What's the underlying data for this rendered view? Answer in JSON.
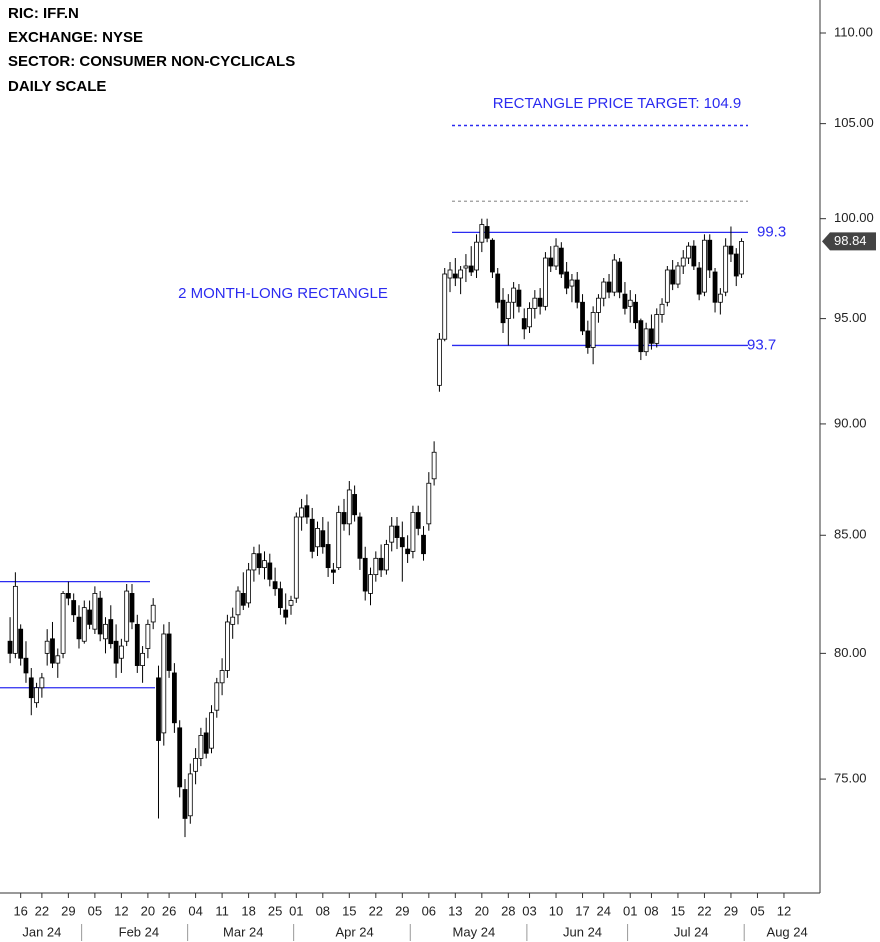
{
  "chart_data": {
    "type": "candlestick",
    "header": [
      "RIC:  IFF.N",
      "EXCHANGE: NYSE",
      "SECTOR:  CONSUMER NON-CYCLICALS",
      "DAILY SCALE"
    ],
    "target_label": "RECTANGLE PRICE TARGET: 104.9",
    "pattern_label": "2 MONTH-LONG RECTANGLE",
    "log_scale": true,
    "ylim": [
      70.74,
      111.88
    ],
    "yticks": [
      {
        "value": 75,
        "label": "75.00"
      },
      {
        "value": 80,
        "label": "80.00"
      },
      {
        "value": 85,
        "label": "85.00"
      },
      {
        "value": 90,
        "label": "90.00"
      },
      {
        "value": 95,
        "label": "95.00"
      },
      {
        "value": 100,
        "label": "100.00"
      },
      {
        "value": 105,
        "label": "105.00"
      },
      {
        "value": 110,
        "label": "110.00"
      }
    ],
    "xlim": [
      -1.9,
      152.8
    ],
    "xticks": [
      {
        "value": 2,
        "label": "16"
      },
      {
        "value": 6,
        "label": "22"
      },
      {
        "value": 11,
        "label": "29"
      },
      {
        "value": 16,
        "label": "05"
      },
      {
        "value": 21,
        "label": "12"
      },
      {
        "value": 26,
        "label": "20"
      },
      {
        "value": 30,
        "label": "26"
      },
      {
        "value": 35,
        "label": "04"
      },
      {
        "value": 40,
        "label": "11"
      },
      {
        "value": 45,
        "label": "18"
      },
      {
        "value": 50,
        "label": "25"
      },
      {
        "value": 54,
        "label": "01"
      },
      {
        "value": 59,
        "label": "08"
      },
      {
        "value": 64,
        "label": "15"
      },
      {
        "value": 69,
        "label": "22"
      },
      {
        "value": 74,
        "label": "29"
      },
      {
        "value": 79,
        "label": "06"
      },
      {
        "value": 84,
        "label": "13"
      },
      {
        "value": 89,
        "label": "20"
      },
      {
        "value": 94,
        "label": "28"
      },
      {
        "value": 98,
        "label": "03"
      },
      {
        "value": 103,
        "label": "10"
      },
      {
        "value": 108,
        "label": "17"
      },
      {
        "value": 112,
        "label": "24"
      },
      {
        "value": 117,
        "label": "01"
      },
      {
        "value": 121,
        "label": "08"
      },
      {
        "value": 126,
        "label": "15"
      },
      {
        "value": 131,
        "label": "22"
      },
      {
        "value": 136,
        "label": "29"
      },
      {
        "value": 141,
        "label": "05"
      },
      {
        "value": 146,
        "label": "12"
      }
    ],
    "month_labels": [
      {
        "value": 6,
        "label": "Jan 24"
      },
      {
        "value": 24.3,
        "label": "Feb 24"
      },
      {
        "value": 44,
        "label": "Mar 24"
      },
      {
        "value": 65,
        "label": "Apr 24"
      },
      {
        "value": 87.5,
        "label": "May 24"
      },
      {
        "value": 108,
        "label": "Jun 24"
      },
      {
        "value": 128.5,
        "label": "Jul 24"
      },
      {
        "value": 146.6,
        "label": "Aug 24"
      }
    ],
    "up_color": "#ffffff",
    "down_color": "#000000",
    "annotation_color": "#2b2bf0",
    "levels": [
      83.0,
      78.6,
      99.3,
      93.7
    ],
    "target": 104.9,
    "upper_dotted": 100.9,
    "last_price": 98.84,
    "ohlc": [
      [
        80.5,
        81.5,
        79.6,
        80.0
      ],
      [
        80.0,
        83.4,
        79.8,
        82.8
      ],
      [
        81.0,
        81.2,
        79.5,
        79.8
      ],
      [
        79.8,
        80.5,
        78.8,
        79.2
      ],
      [
        79.0,
        79.4,
        77.5,
        78.2
      ],
      [
        78.0,
        78.8,
        77.8,
        78.6
      ],
      [
        78.6,
        79.2,
        78.2,
        79.0
      ],
      [
        80.0,
        81.0,
        79.5,
        80.5
      ],
      [
        80.6,
        81.3,
        79.4,
        79.6
      ],
      [
        79.6,
        80.2,
        79.0,
        79.9
      ],
      [
        80.0,
        82.6,
        79.8,
        82.5
      ],
      [
        82.5,
        83.0,
        82.0,
        82.3
      ],
      [
        82.2,
        82.5,
        81.3,
        81.6
      ],
      [
        81.5,
        82.0,
        80.2,
        80.6
      ],
      [
        80.5,
        82.2,
        80.4,
        81.9
      ],
      [
        81.8,
        82.2,
        81.0,
        81.2
      ],
      [
        81.0,
        82.8,
        80.8,
        82.5
      ],
      [
        82.3,
        82.6,
        80.5,
        80.8
      ],
      [
        80.6,
        81.5,
        80.0,
        81.2
      ],
      [
        81.4,
        82.0,
        80.2,
        80.4
      ],
      [
        80.5,
        81.2,
        79.0,
        79.6
      ],
      [
        79.8,
        80.6,
        79.2,
        80.3
      ],
      [
        80.5,
        82.9,
        80.3,
        82.6
      ],
      [
        82.5,
        82.9,
        81.0,
        81.3
      ],
      [
        81.2,
        81.6,
        79.2,
        79.5
      ],
      [
        79.5,
        80.3,
        78.8,
        80.0
      ],
      [
        80.2,
        81.4,
        79.8,
        81.2
      ],
      [
        81.3,
        82.3,
        81.0,
        82.0
      ],
      [
        79.0,
        79.5,
        73.5,
        76.5
      ],
      [
        76.8,
        81.2,
        76.3,
        80.8
      ],
      [
        80.8,
        81.3,
        79.0,
        79.3
      ],
      [
        79.2,
        79.6,
        76.8,
        77.2
      ],
      [
        77.0,
        77.3,
        74.3,
        74.7
      ],
      [
        74.6,
        75.0,
        72.8,
        73.5
      ],
      [
        73.6,
        75.6,
        73.3,
        75.2
      ],
      [
        75.3,
        76.2,
        74.8,
        75.8
      ],
      [
        75.8,
        77.0,
        75.5,
        76.7
      ],
      [
        76.8,
        77.4,
        75.8,
        76.0
      ],
      [
        76.2,
        77.9,
        76.0,
        77.6
      ],
      [
        77.7,
        79.0,
        77.4,
        78.8
      ],
      [
        78.8,
        79.8,
        78.3,
        79.3
      ],
      [
        79.3,
        81.6,
        79.0,
        81.3
      ],
      [
        81.2,
        81.9,
        80.6,
        81.5
      ],
      [
        81.6,
        82.8,
        81.2,
        82.6
      ],
      [
        82.5,
        83.4,
        81.8,
        82.0
      ],
      [
        82.1,
        83.8,
        81.9,
        83.5
      ],
      [
        83.5,
        84.5,
        83.0,
        84.2
      ],
      [
        84.2,
        84.6,
        83.3,
        83.6
      ],
      [
        83.6,
        84.3,
        83.1,
        83.9
      ],
      [
        83.8,
        84.2,
        82.8,
        83.1
      ],
      [
        83.0,
        83.6,
        82.4,
        82.7
      ],
      [
        82.7,
        83.0,
        81.6,
        81.9
      ],
      [
        81.8,
        82.5,
        81.2,
        81.5
      ],
      [
        82.0,
        82.4,
        81.6,
        82.2
      ],
      [
        82.3,
        86.0,
        82.1,
        85.8
      ],
      [
        85.8,
        86.6,
        85.2,
        86.2
      ],
      [
        86.3,
        86.8,
        85.5,
        85.8
      ],
      [
        85.7,
        86.2,
        84.0,
        84.3
      ],
      [
        84.5,
        85.6,
        84.1,
        85.3
      ],
      [
        85.2,
        85.8,
        84.2,
        84.5
      ],
      [
        84.6,
        85.6,
        83.2,
        83.6
      ],
      [
        83.5,
        83.8,
        82.9,
        83.4
      ],
      [
        83.6,
        86.3,
        83.5,
        86.0
      ],
      [
        86.0,
        86.6,
        85.2,
        85.5
      ],
      [
        85.5,
        87.4,
        85.0,
        87.0
      ],
      [
        86.8,
        87.2,
        85.6,
        85.9
      ],
      [
        85.8,
        86.0,
        83.5,
        84.0
      ],
      [
        84.0,
        84.5,
        82.2,
        82.6
      ],
      [
        82.5,
        83.6,
        82.0,
        83.3
      ],
      [
        83.3,
        84.3,
        83.0,
        84.0
      ],
      [
        84.0,
        84.6,
        83.2,
        83.5
      ],
      [
        83.5,
        84.8,
        83.3,
        84.6
      ],
      [
        84.7,
        85.8,
        84.3,
        85.4
      ],
      [
        85.4,
        85.8,
        84.4,
        84.9
      ],
      [
        84.9,
        85.6,
        83.0,
        84.5
      ],
      [
        84.4,
        85.0,
        83.8,
        84.2
      ],
      [
        84.3,
        86.3,
        84.0,
        86.0
      ],
      [
        86.0,
        86.3,
        85.0,
        85.3
      ],
      [
        85.0,
        85.4,
        83.9,
        84.2
      ],
      [
        85.5,
        87.8,
        85.2,
        87.3
      ],
      [
        87.5,
        89.2,
        87.2,
        88.7
      ],
      [
        91.8,
        94.3,
        91.5,
        94.0
      ],
      [
        94.0,
        97.5,
        93.9,
        97.2
      ],
      [
        97.0,
        97.8,
        96.3,
        97.4
      ],
      [
        97.2,
        98.0,
        96.6,
        97.0
      ],
      [
        97.0,
        97.6,
        96.2,
        97.4
      ],
      [
        97.5,
        98.2,
        96.8,
        97.6
      ],
      [
        97.6,
        98.6,
        97.1,
        97.3
      ],
      [
        97.4,
        99.2,
        97.0,
        98.8
      ],
      [
        98.8,
        100.0,
        98.3,
        99.7
      ],
      [
        99.6,
        100.0,
        98.8,
        99.0
      ],
      [
        98.9,
        99.0,
        97.0,
        97.3
      ],
      [
        97.2,
        97.5,
        95.5,
        95.8
      ],
      [
        95.9,
        96.5,
        94.3,
        94.8
      ],
      [
        95.0,
        96.2,
        93.7,
        95.8
      ],
      [
        95.8,
        96.8,
        95.0,
        96.5
      ],
      [
        96.4,
        96.7,
        95.3,
        95.6
      ],
      [
        95.0,
        95.5,
        94.0,
        94.5
      ],
      [
        94.6,
        95.8,
        94.3,
        95.5
      ],
      [
        95.5,
        96.4,
        95.0,
        96.0
      ],
      [
        96.0,
        96.5,
        95.2,
        95.6
      ],
      [
        95.6,
        98.3,
        95.4,
        98.0
      ],
      [
        98.0,
        98.6,
        97.3,
        97.6
      ],
      [
        97.6,
        99.0,
        97.4,
        98.6
      ],
      [
        98.5,
        98.8,
        97.0,
        97.2
      ],
      [
        97.3,
        97.8,
        96.2,
        96.5
      ],
      [
        96.6,
        97.2,
        95.8,
        96.9
      ],
      [
        96.9,
        97.3,
        95.5,
        95.8
      ],
      [
        95.8,
        96.2,
        94.2,
        94.4
      ],
      [
        94.4,
        94.9,
        93.3,
        93.6
      ],
      [
        93.6,
        95.6,
        92.8,
        95.3
      ],
      [
        95.3,
        96.2,
        94.8,
        96.0
      ],
      [
        96.0,
        97.0,
        95.6,
        96.8
      ],
      [
        96.8,
        97.2,
        96.0,
        96.3
      ],
      [
        96.3,
        98.2,
        96.1,
        97.9
      ],
      [
        97.8,
        98.0,
        96.0,
        96.3
      ],
      [
        96.2,
        96.8,
        95.2,
        95.5
      ],
      [
        95.6,
        96.4,
        94.8,
        95.9
      ],
      [
        95.8,
        96.2,
        94.5,
        94.8
      ],
      [
        94.9,
        95.0,
        93.0,
        93.4
      ],
      [
        93.4,
        94.8,
        93.2,
        94.5
      ],
      [
        94.5,
        95.2,
        93.5,
        93.8
      ],
      [
        93.8,
        95.5,
        93.6,
        95.2
      ],
      [
        95.2,
        96.0,
        94.8,
        95.7
      ],
      [
        95.8,
        97.6,
        95.6,
        97.4
      ],
      [
        97.4,
        97.9,
        96.4,
        96.7
      ],
      [
        96.7,
        97.8,
        96.5,
        97.6
      ],
      [
        97.6,
        98.4,
        97.2,
        98.0
      ],
      [
        98.0,
        98.8,
        97.7,
        98.6
      ],
      [
        98.6,
        98.9,
        97.4,
        97.6
      ],
      [
        97.5,
        97.8,
        95.9,
        96.2
      ],
      [
        96.3,
        99.2,
        96.1,
        98.9
      ],
      [
        98.9,
        99.2,
        97.0,
        97.4
      ],
      [
        97.3,
        97.5,
        95.3,
        95.8
      ],
      [
        95.8,
        96.5,
        95.2,
        96.2
      ],
      [
        96.3,
        99.0,
        96.1,
        98.6
      ],
      [
        98.6,
        99.6,
        97.8,
        98.2
      ],
      [
        98.2,
        98.5,
        96.6,
        97.1
      ],
      [
        97.2,
        99.0,
        97.0,
        98.84
      ]
    ]
  }
}
